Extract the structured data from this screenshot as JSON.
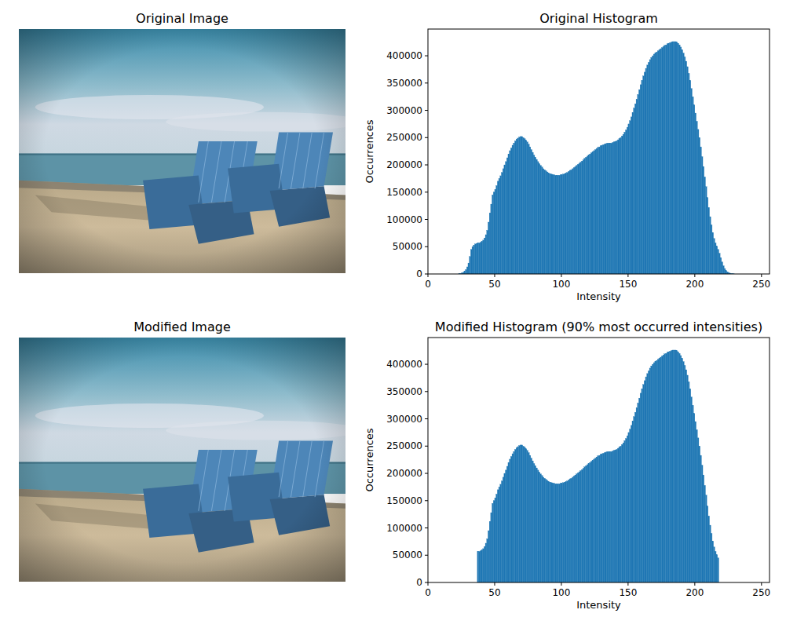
{
  "chart_data": [
    {
      "type": "image",
      "title": "Original Image"
    },
    {
      "type": "histogram",
      "title": "Original Histogram",
      "x_label": "Intensity",
      "y_label": "Occurrences",
      "color": "#1f77b4",
      "grid": false,
      "xlim": [
        0,
        256
      ],
      "ylim": [
        0,
        449000
      ],
      "xticks": [
        0,
        50,
        100,
        150,
        200,
        250
      ],
      "yticks": [
        0,
        50000,
        100000,
        150000,
        200000,
        250000,
        300000,
        350000,
        400000
      ],
      "bins": [
        0,
        1,
        2,
        3,
        4,
        5,
        6,
        7,
        8,
        9,
        10,
        11,
        12,
        13,
        14,
        15,
        16,
        17,
        18,
        19,
        20,
        21,
        22,
        23,
        24,
        25,
        26,
        27,
        28,
        29,
        30,
        31,
        32,
        33,
        34,
        35,
        36,
        37,
        38,
        39,
        40,
        41,
        42,
        43,
        44,
        45,
        46,
        47,
        48,
        49,
        50,
        51,
        52,
        53,
        54,
        55,
        56,
        57,
        58,
        59,
        60,
        61,
        62,
        63,
        64,
        65,
        66,
        67,
        68,
        69,
        70,
        71,
        72,
        73,
        74,
        75,
        76,
        77,
        78,
        79,
        80,
        81,
        82,
        83,
        84,
        85,
        86,
        87,
        88,
        89,
        90,
        91,
        92,
        93,
        94,
        95,
        96,
        97,
        98,
        99,
        100,
        101,
        102,
        103,
        104,
        105,
        106,
        107,
        108,
        109,
        110,
        111,
        112,
        113,
        114,
        115,
        116,
        117,
        118,
        119,
        120,
        121,
        122,
        123,
        124,
        125,
        126,
        127,
        128,
        129,
        130,
        131,
        132,
        133,
        134,
        135,
        136,
        137,
        138,
        139,
        140,
        141,
        142,
        143,
        144,
        145,
        146,
        147,
        148,
        149,
        150,
        151,
        152,
        153,
        154,
        155,
        156,
        157,
        158,
        159,
        160,
        161,
        162,
        163,
        164,
        165,
        166,
        167,
        168,
        169,
        170,
        171,
        172,
        173,
        174,
        175,
        176,
        177,
        178,
        179,
        180,
        181,
        182,
        183,
        184,
        185,
        186,
        187,
        188,
        189,
        190,
        191,
        192,
        193,
        194,
        195,
        196,
        197,
        198,
        199,
        200,
        201,
        202,
        203,
        204,
        205,
        206,
        207,
        208,
        209,
        210,
        211,
        212,
        213,
        214,
        215,
        216,
        217,
        218,
        219,
        220,
        221,
        222,
        223,
        224,
        225,
        226,
        227,
        228,
        229,
        230,
        231,
        232,
        233,
        234,
        235,
        236,
        237,
        238,
        239,
        240,
        241,
        242,
        243,
        244,
        245,
        246,
        247,
        248,
        249,
        250,
        251,
        252,
        253,
        254,
        255,
        256
      ],
      "values": [
        0,
        0,
        0,
        0,
        0,
        0,
        0,
        0,
        0,
        0,
        0,
        0,
        0,
        0,
        0,
        0,
        0,
        0,
        0,
        0,
        0,
        0,
        0,
        500,
        1000,
        2000,
        3000,
        5000,
        8000,
        13000,
        20000,
        32000,
        45000,
        50000,
        53000,
        55000,
        56000,
        57000,
        57000,
        58000,
        60000,
        62000,
        66000,
        72000,
        80000,
        95000,
        112000,
        128000,
        145000,
        150000,
        155000,
        162000,
        170000,
        175000,
        180000,
        186000,
        193000,
        200000,
        206000,
        213000,
        220000,
        226000,
        231000,
        236000,
        240000,
        244000,
        247000,
        249000,
        251000,
        252000,
        252000,
        250000,
        248000,
        245000,
        242000,
        238000,
        233000,
        228000,
        223000,
        218000,
        214000,
        210000,
        206000,
        202000,
        199000,
        196000,
        193000,
        191000,
        189000,
        187000,
        185000,
        184000,
        183000,
        182000,
        182000,
        181000,
        181000,
        181000,
        181000,
        182000,
        182000,
        183000,
        184000,
        185000,
        186000,
        188000,
        190000,
        191000,
        193000,
        195000,
        197000,
        199000,
        201000,
        203000,
        205000,
        207000,
        209000,
        212000,
        214000,
        216000,
        218000,
        220000,
        222000,
        224000,
        226000,
        228000,
        230000,
        232000,
        233000,
        235000,
        236000,
        237000,
        238000,
        239000,
        240000,
        240000,
        240000,
        240000,
        241000,
        242000,
        243000,
        244000,
        246000,
        248000,
        250000,
        253000,
        256000,
        260000,
        264000,
        269000,
        275000,
        281000,
        288000,
        296000,
        304000,
        312000,
        320000,
        329000,
        338000,
        347000,
        355000,
        363000,
        370000,
        377000,
        383000,
        388000,
        393000,
        397000,
        400000,
        403000,
        405000,
        407000,
        409000,
        411000,
        413000,
        415000,
        417000,
        419000,
        420000,
        422000,
        423000,
        424000,
        425000,
        426000,
        426000,
        426000,
        425000,
        423000,
        420000,
        416000,
        411000,
        405000,
        398000,
        390000,
        380000,
        368000,
        355000,
        340000,
        325000,
        310000,
        295000,
        280000,
        265000,
        250000,
        233000,
        215000,
        197000,
        178000,
        160000,
        140000,
        122000,
        105000,
        90000,
        76000,
        65000,
        57000,
        51000,
        45000,
        38000,
        30000,
        22000,
        15000,
        10000,
        6000,
        4000,
        2500,
        1500,
        800,
        400,
        200,
        0,
        0,
        0,
        0,
        0,
        0,
        0,
        0,
        0,
        0,
        0,
        0,
        0,
        0,
        0,
        0,
        0,
        0,
        0,
        0,
        0,
        0,
        0,
        0,
        0,
        0
      ]
    },
    {
      "type": "image",
      "title": "Modified Image"
    },
    {
      "type": "histogram",
      "title": "Modified Histogram (90% most occurred intensities)",
      "x_label": "Intensity",
      "y_label": "Occurrences",
      "color": "#1f77b4",
      "grid": false,
      "xlim": [
        0,
        256
      ],
      "ylim": [
        0,
        449000
      ],
      "xticks": [
        0,
        50,
        100,
        150,
        200,
        250
      ],
      "yticks": [
        0,
        50000,
        100000,
        150000,
        200000,
        250000,
        300000,
        350000,
        400000
      ],
      "bins": [
        0,
        1,
        2,
        3,
        4,
        5,
        6,
        7,
        8,
        9,
        10,
        11,
        12,
        13,
        14,
        15,
        16,
        17,
        18,
        19,
        20,
        21,
        22,
        23,
        24,
        25,
        26,
        27,
        28,
        29,
        30,
        31,
        32,
        33,
        34,
        35,
        36,
        37,
        38,
        39,
        40,
        41,
        42,
        43,
        44,
        45,
        46,
        47,
        48,
        49,
        50,
        51,
        52,
        53,
        54,
        55,
        56,
        57,
        58,
        59,
        60,
        61,
        62,
        63,
        64,
        65,
        66,
        67,
        68,
        69,
        70,
        71,
        72,
        73,
        74,
        75,
        76,
        77,
        78,
        79,
        80,
        81,
        82,
        83,
        84,
        85,
        86,
        87,
        88,
        89,
        90,
        91,
        92,
        93,
        94,
        95,
        96,
        97,
        98,
        99,
        100,
        101,
        102,
        103,
        104,
        105,
        106,
        107,
        108,
        109,
        110,
        111,
        112,
        113,
        114,
        115,
        116,
        117,
        118,
        119,
        120,
        121,
        122,
        123,
        124,
        125,
        126,
        127,
        128,
        129,
        130,
        131,
        132,
        133,
        134,
        135,
        136,
        137,
        138,
        139,
        140,
        141,
        142,
        143,
        144,
        145,
        146,
        147,
        148,
        149,
        150,
        151,
        152,
        153,
        154,
        155,
        156,
        157,
        158,
        159,
        160,
        161,
        162,
        163,
        164,
        165,
        166,
        167,
        168,
        169,
        170,
        171,
        172,
        173,
        174,
        175,
        176,
        177,
        178,
        179,
        180,
        181,
        182,
        183,
        184,
        185,
        186,
        187,
        188,
        189,
        190,
        191,
        192,
        193,
        194,
        195,
        196,
        197,
        198,
        199,
        200,
        201,
        202,
        203,
        204,
        205,
        206,
        207,
        208,
        209,
        210,
        211,
        212,
        213,
        214,
        215,
        216,
        217,
        218,
        219,
        220,
        221,
        222,
        223,
        224,
        225,
        226,
        227,
        228,
        229,
        230,
        231,
        232,
        233,
        234,
        235,
        236,
        237,
        238,
        239,
        240,
        241,
        242,
        243,
        244,
        245,
        246,
        247,
        248,
        249,
        250,
        251,
        252,
        253,
        254,
        255,
        256
      ],
      "values": [
        0,
        0,
        0,
        0,
        0,
        0,
        0,
        0,
        0,
        0,
        0,
        0,
        0,
        0,
        0,
        0,
        0,
        0,
        0,
        0,
        0,
        0,
        0,
        0,
        0,
        0,
        0,
        0,
        0,
        0,
        0,
        0,
        0,
        0,
        0,
        0,
        0,
        57000,
        57000,
        58000,
        60000,
        62000,
        66000,
        72000,
        80000,
        95000,
        112000,
        128000,
        145000,
        150000,
        155000,
        162000,
        170000,
        175000,
        180000,
        186000,
        193000,
        200000,
        206000,
        213000,
        220000,
        226000,
        231000,
        236000,
        240000,
        244000,
        247000,
        249000,
        251000,
        252000,
        252000,
        250000,
        248000,
        245000,
        242000,
        238000,
        233000,
        228000,
        223000,
        218000,
        214000,
        210000,
        206000,
        202000,
        199000,
        196000,
        193000,
        191000,
        189000,
        187000,
        185000,
        184000,
        183000,
        182000,
        182000,
        181000,
        181000,
        181000,
        181000,
        182000,
        182000,
        183000,
        184000,
        185000,
        186000,
        188000,
        190000,
        191000,
        193000,
        195000,
        197000,
        199000,
        201000,
        203000,
        205000,
        207000,
        209000,
        212000,
        214000,
        216000,
        218000,
        220000,
        222000,
        224000,
        226000,
        228000,
        230000,
        232000,
        233000,
        235000,
        236000,
        237000,
        238000,
        239000,
        240000,
        240000,
        240000,
        240000,
        241000,
        242000,
        243000,
        244000,
        246000,
        248000,
        250000,
        253000,
        256000,
        260000,
        264000,
        269000,
        275000,
        281000,
        288000,
        296000,
        304000,
        312000,
        320000,
        329000,
        338000,
        347000,
        355000,
        363000,
        370000,
        377000,
        383000,
        388000,
        393000,
        397000,
        400000,
        403000,
        405000,
        407000,
        409000,
        411000,
        413000,
        415000,
        417000,
        419000,
        420000,
        422000,
        423000,
        424000,
        425000,
        426000,
        426000,
        426000,
        425000,
        423000,
        420000,
        416000,
        411000,
        405000,
        398000,
        390000,
        380000,
        368000,
        355000,
        340000,
        325000,
        310000,
        295000,
        280000,
        265000,
        250000,
        233000,
        215000,
        197000,
        178000,
        160000,
        140000,
        122000,
        105000,
        90000,
        76000,
        65000,
        57000,
        51000,
        45000,
        0,
        0,
        0,
        0,
        0,
        0,
        0,
        0,
        0,
        0,
        0,
        0,
        0,
        0,
        0,
        0,
        0,
        0,
        0,
        0,
        0,
        0,
        0,
        0,
        0,
        0,
        0,
        0,
        0,
        0,
        0,
        0,
        0,
        0,
        0,
        0,
        0,
        0
      ]
    }
  ]
}
